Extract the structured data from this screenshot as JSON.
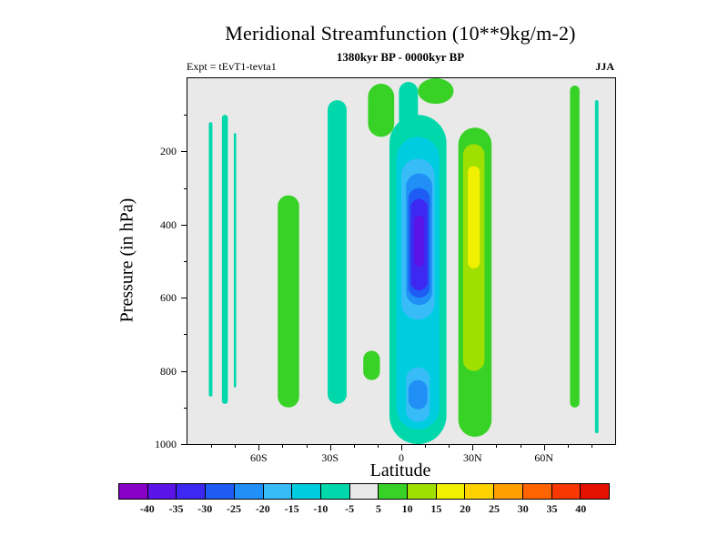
{
  "chart_data": {
    "type": "contour",
    "title": "Meridional Streamfunction (10**9kg/m-2)",
    "subtitle": "1380kyr BP - 0000kyr BP",
    "left_annotation": "Expt = tEvT1-tevta1",
    "right_annotation": "JJA",
    "xlabel": "Latitude",
    "ylabel": "Pressure (in hPa)",
    "units": "10**9 kg/m-2",
    "background_color": "#e9e9e9",
    "background_band": "-5 to 5",
    "x_axis": {
      "min": -90,
      "max": 90,
      "minor_tick_step": 10,
      "major_ticks": [
        {
          "value": -60,
          "label": "60S"
        },
        {
          "value": -30,
          "label": "30S"
        },
        {
          "value": 0,
          "label": "0"
        },
        {
          "value": 30,
          "label": "30N"
        },
        {
          "value": 60,
          "label": "60N"
        }
      ]
    },
    "y_axis": {
      "min": 0,
      "max": 1000,
      "minor_tick_step": 100,
      "direction": "increasing-downward",
      "major_ticks": [
        {
          "value": 200,
          "label": "200"
        },
        {
          "value": 400,
          "label": "400"
        },
        {
          "value": 600,
          "label": "600"
        },
        {
          "value": 800,
          "label": "800"
        },
        {
          "value": 1000,
          "label": "1000"
        }
      ]
    },
    "colorbar": {
      "boundary_labels": [
        "-40",
        "-35",
        "-30",
        "-25",
        "-20",
        "-15",
        "-10",
        "-5",
        "5",
        "10",
        "15",
        "20",
        "25",
        "30",
        "35",
        "40"
      ],
      "cell_colors": [
        "#8800c8",
        "#5a14e8",
        "#3c28f0",
        "#1e5cf4",
        "#2090f6",
        "#38bcf8",
        "#00cce0",
        "#00d8ac",
        "#e9e9e9",
        "#38d226",
        "#a0e000",
        "#f0f000",
        "#ffd200",
        "#ffa000",
        "#ff6400",
        "#f83800",
        "#e41000"
      ],
      "label_color": "#111111"
    },
    "features": [
      {
        "name": "antarctic-stripe-1",
        "band": "-10 to -5",
        "color": "#00d8ac",
        "lat_range": [
          -81,
          -79.5
        ],
        "pressure_range": [
          120,
          870
        ]
      },
      {
        "name": "antarctic-stripe-2",
        "band": "-10 to -5",
        "color": "#00d8ac",
        "lat_range": [
          -75.5,
          -73
        ],
        "pressure_range": [
          100,
          890
        ]
      },
      {
        "name": "antarctic-stripe-3",
        "band": "-10 to -5",
        "color": "#00d8ac",
        "lat_range": [
          -70.5,
          -69.5
        ],
        "pressure_range": [
          150,
          845
        ]
      },
      {
        "name": "subtropical-south-teal-band",
        "band": "-10 to -5",
        "color": "#00d8ac",
        "lat_range": [
          -31,
          -23
        ],
        "pressure_range": [
          60,
          890
        ]
      },
      {
        "name": "midlat-south-green-band",
        "band": "5 to 10",
        "color": "#38d226",
        "lat_range": [
          -52,
          -43
        ],
        "pressure_range": [
          320,
          900
        ]
      },
      {
        "name": "small-green-blob-20S-800hPa",
        "band": "5 to 10",
        "color": "#38d226",
        "lat_range": [
          -16,
          -9
        ],
        "pressure_range": [
          745,
          825
        ]
      },
      {
        "name": "green-blob-top-10S",
        "band": "5 to 10",
        "color": "#38d226",
        "lat_range": [
          -14,
          -3
        ],
        "pressure_range": [
          15,
          160
        ]
      },
      {
        "name": "equatorial-negative-cell-outer",
        "band": "-10 to -5",
        "color": "#00d8ac",
        "lat_range": [
          -5,
          19
        ],
        "pressure_range": [
          100,
          1000
        ]
      },
      {
        "name": "equatorial-negative-neck",
        "band": "-10 to -5",
        "color": "#00d8ac",
        "lat_range": [
          -1,
          7
        ],
        "pressure_range": [
          10,
          140
        ]
      },
      {
        "name": "green-blob-top-15N",
        "band": "5 to 10",
        "color": "#38d226",
        "lat_range": [
          7,
          22
        ],
        "pressure_range": [
          0,
          70
        ]
      },
      {
        "name": "equatorial-cell-minus10",
        "band": "-15 to -10",
        "color": "#00cce0",
        "lat_range": [
          -2,
          16
        ],
        "pressure_range": [
          160,
          960
        ]
      },
      {
        "name": "equatorial-cell-minus15-upper",
        "band": "-20 to -15",
        "color": "#38bcf8",
        "lat_range": [
          0,
          14
        ],
        "pressure_range": [
          220,
          660
        ]
      },
      {
        "name": "equatorial-cell-minus15-lower",
        "band": "-20 to -15",
        "color": "#38bcf8",
        "lat_range": [
          2,
          12
        ],
        "pressure_range": [
          790,
          940
        ]
      },
      {
        "name": "equatorial-cell-minus20",
        "band": "-25 to -20",
        "color": "#2090f6",
        "lat_range": [
          2,
          13
        ],
        "pressure_range": [
          260,
          620
        ]
      },
      {
        "name": "equatorial-cell-minus20-lower",
        "band": "-25 to -20",
        "color": "#2090f6",
        "lat_range": [
          3,
          11
        ],
        "pressure_range": [
          825,
          905
        ]
      },
      {
        "name": "equatorial-cell-minus25",
        "band": "-30 to -25",
        "color": "#1e5cf4",
        "lat_range": [
          3,
          12
        ],
        "pressure_range": [
          300,
          600
        ]
      },
      {
        "name": "equatorial-cell-minus30",
        "band": "-35 to -30",
        "color": "#3c28f0",
        "lat_range": [
          4,
          11
        ],
        "pressure_range": [
          330,
          580
        ]
      },
      {
        "name": "equatorial-cell-minus35-core",
        "band": "-40 to -35",
        "color": "#5a14e8",
        "lat_range": [
          5.5,
          9.5
        ],
        "pressure_range": [
          375,
          515
        ]
      },
      {
        "name": "subtropical-north-positive-outer",
        "band": "5 to 10",
        "color": "#38d226",
        "lat_range": [
          24,
          38
        ],
        "pressure_range": [
          135,
          980
        ]
      },
      {
        "name": "subtropical-north-positive-mid",
        "band": "10 to 15",
        "color": "#a0e000",
        "lat_range": [
          26,
          35
        ],
        "pressure_range": [
          180,
          800
        ]
      },
      {
        "name": "subtropical-north-positive-core",
        "band": "15 to 20",
        "color": "#f0f000",
        "lat_range": [
          28,
          33
        ],
        "pressure_range": [
          240,
          520
        ]
      },
      {
        "name": "polar-north-green-stripe",
        "band": "5 to 10",
        "color": "#38d226",
        "lat_range": [
          71,
          75
        ],
        "pressure_range": [
          20,
          900
        ]
      },
      {
        "name": "polar-north-teal-stripe",
        "band": "-10 to -5",
        "color": "#00d8ac",
        "lat_range": [
          81.5,
          83
        ],
        "pressure_range": [
          60,
          970
        ]
      }
    ]
  }
}
